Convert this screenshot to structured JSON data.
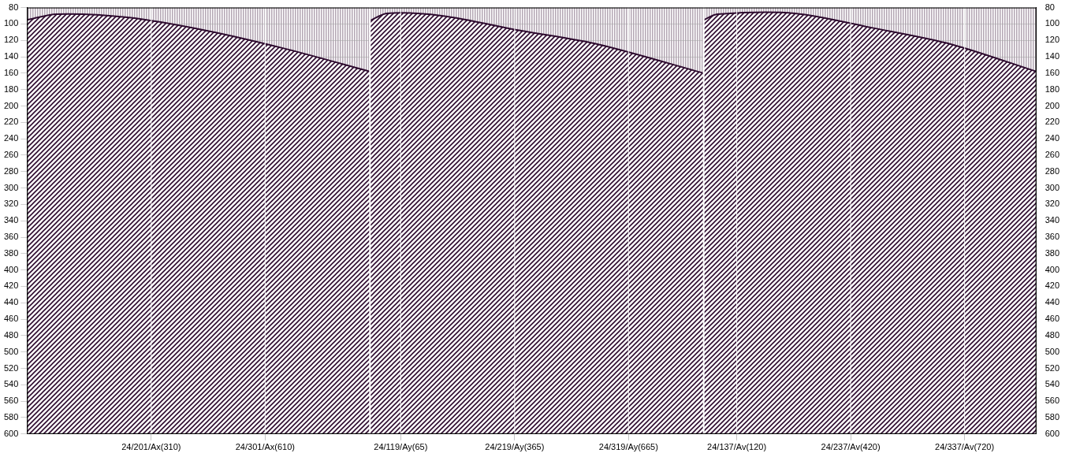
{
  "chart_data": {
    "type": "line",
    "xlim": [
      0,
      886
    ],
    "xticks": [
      {
        "value": 109,
        "label": "24/201/Ax(310)"
      },
      {
        "value": 209,
        "label": "24/301/Ax(610)"
      },
      {
        "value": 328,
        "label": "24/119/Ay(65)"
      },
      {
        "value": 428,
        "label": "24/219/Ay(365)"
      },
      {
        "value": 528,
        "label": "24/319/Ay(665)"
      },
      {
        "value": 623,
        "label": "24/137/Av(120)"
      },
      {
        "value": 723,
        "label": "24/237/Av(420)"
      },
      {
        "value": 823,
        "label": "24/337/Av(720)"
      }
    ],
    "ylim": [
      80,
      600
    ],
    "yticks": [
      80,
      100,
      120,
      140,
      160,
      180,
      200,
      220,
      240,
      260,
      280,
      300,
      320,
      340,
      360,
      380,
      400,
      420,
      440,
      460,
      480,
      500,
      520,
      540,
      560,
      580,
      600
    ],
    "y2lim": [
      80,
      600
    ],
    "y2ticks": [
      80,
      100,
      120,
      140,
      160,
      180,
      200,
      220,
      240,
      260,
      280,
      300,
      320,
      340,
      360,
      380,
      400,
      420,
      440,
      460,
      480,
      500,
      520,
      540,
      560,
      580,
      600
    ],
    "grid": true,
    "series": [
      {
        "color": "#2d0a2e",
        "x": [
          0,
          26,
          88,
          157,
          226,
          301
        ],
        "values": [
          95,
          88,
          92,
          108,
          130,
          158
        ]
      },
      {
        "color": "#2d0a2e",
        "x": [
          301,
          316,
          364,
          433,
          502,
          594
        ],
        "values": [
          96,
          87,
          90,
          108,
          125,
          160
        ]
      },
      {
        "color": "#2d0a2e",
        "x": [
          594,
          606,
          674,
          743,
          812,
          886
        ],
        "values": [
          95,
          88,
          87,
          105,
          125,
          158
        ]
      }
    ]
  }
}
